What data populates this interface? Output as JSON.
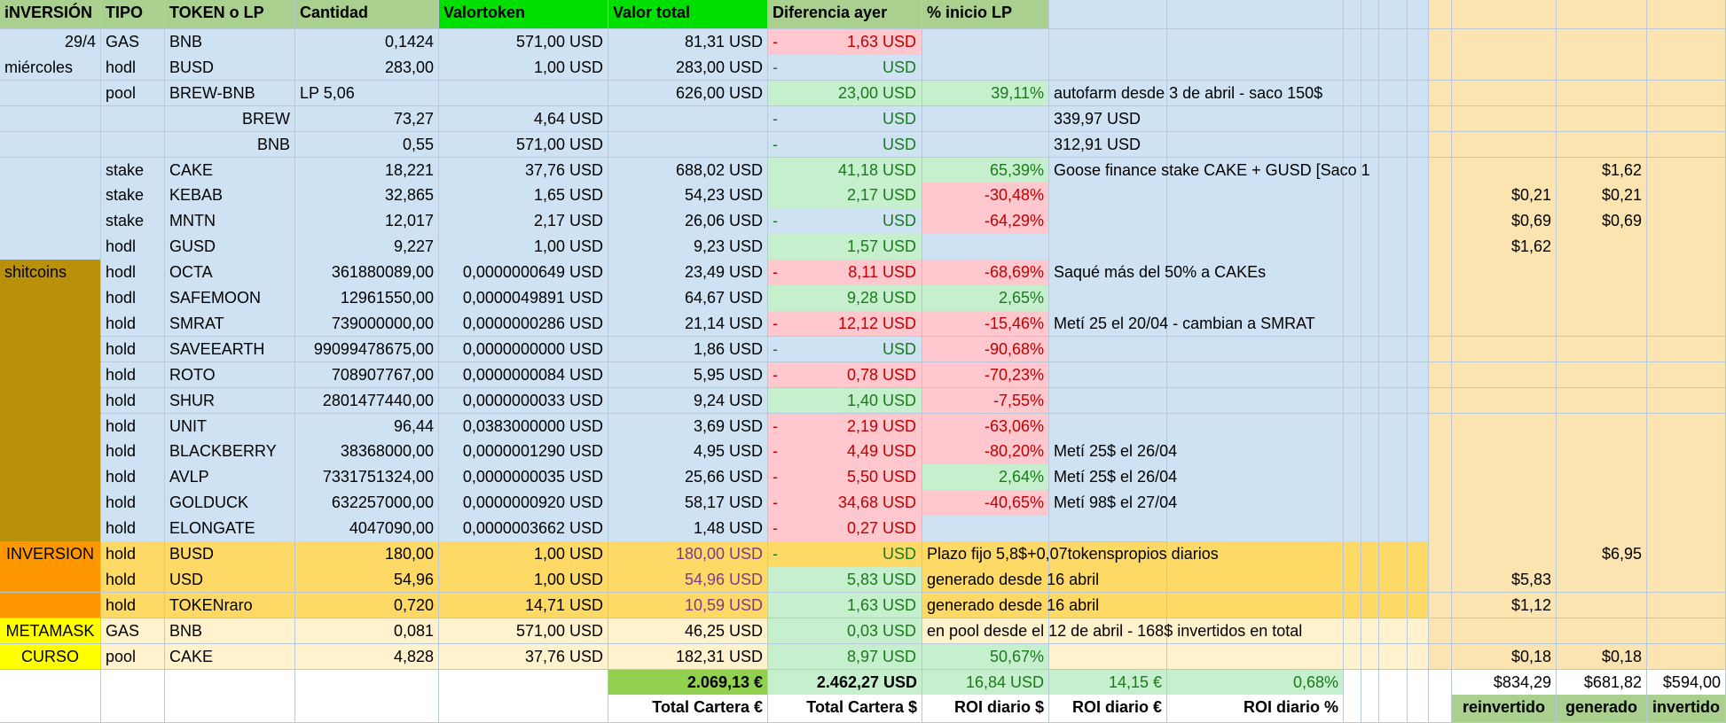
{
  "sheet": {
    "header": {
      "inversion": "iNVERSIÓN",
      "tipo": "TIPO",
      "token": "TOKEN o LP",
      "cantidad": "Cantidad",
      "valortoken": "Valortoken",
      "valortotal": "Valor total",
      "diferencia": "Diferencia ayer",
      "inicio": "% inicio LP"
    },
    "rows": [
      {
        "group": "29/4",
        "tipo": "GAS",
        "token": "BNB",
        "cantidad": "0,1424",
        "valortoken": "571,00 USD",
        "valortotal": "81,31 USD",
        "dash": "-",
        "diff": "1,63 USD",
        "trend": "down",
        "pct": "",
        "note": "",
        "ext_a": "",
        "ext_b": "",
        "ext_c": ""
      },
      {
        "group": "miércoles",
        "tipo": "hodl",
        "token": "BUSD",
        "cantidad": "283,00",
        "valortoken": "1,00 USD",
        "valortotal": "283,00 USD",
        "dash": "-",
        "diff": "USD",
        "trend": "zero",
        "pct": "",
        "note": "",
        "ext_a": "",
        "ext_b": "",
        "ext_c": ""
      },
      {
        "group": "",
        "tipo": "pool",
        "token": "BREW-BNB",
        "cantidad": "LP 5,06",
        "valortoken": "",
        "valortotal": "626,00 USD",
        "dash": "",
        "diff": "23,00 USD",
        "trend": "up",
        "pct": "39,11%",
        "note": "autofarm desde 3 de abril - saco 150$",
        "ext_a": "",
        "ext_b": "",
        "ext_c": ""
      },
      {
        "group": "",
        "tipo": "",
        "token": "BREW",
        "cantidad": "73,27",
        "valortoken": "4,64 USD",
        "valortotal": "",
        "dash": "-",
        "diff": "USD",
        "trend": "zero",
        "pct": "",
        "note": "339,97 USD",
        "ext_a": "",
        "ext_b": "",
        "ext_c": ""
      },
      {
        "group": "",
        "tipo": "",
        "token": "BNB",
        "cantidad": "0,55",
        "valortoken": "571,00 USD",
        "valortotal": "",
        "dash": "-",
        "diff": "USD",
        "trend": "zero",
        "pct": "",
        "note": "312,91 USD",
        "ext_a": "",
        "ext_b": "",
        "ext_c": ""
      },
      {
        "group": "",
        "tipo": "stake",
        "token": "CAKE",
        "cantidad": "18,221",
        "valortoken": "37,76 USD",
        "valortotal": "688,02 USD",
        "dash": "",
        "diff": "41,18 USD",
        "trend": "up",
        "pct": "65,39%",
        "note": "Goose finance stake CAKE + GUSD [Saco 1",
        "ext_a": "",
        "ext_b": "$1,62",
        "ext_c": ""
      },
      {
        "group": "",
        "tipo": "stake",
        "token": "KEBAB",
        "cantidad": "32,865",
        "valortoken": "1,65 USD",
        "valortotal": "54,23 USD",
        "dash": "",
        "diff": "2,17 USD",
        "trend": "up",
        "pct": "-30,48%",
        "note": "",
        "ext_a": "$0,21",
        "ext_b": "$0,21",
        "ext_c": ""
      },
      {
        "group": "",
        "tipo": "stake",
        "token": "MNTN",
        "cantidad": "12,017",
        "valortoken": "2,17 USD",
        "valortotal": "26,06 USD",
        "dash": "-",
        "diff": "USD",
        "trend": "zero",
        "pct": "-64,29%",
        "note": "",
        "ext_a": "$0,69",
        "ext_b": "$0,69",
        "ext_c": ""
      },
      {
        "group": "",
        "tipo": "hodl",
        "token": "GUSD",
        "cantidad": "9,227",
        "valortoken": "1,00 USD",
        "valortotal": "9,23 USD",
        "dash": "",
        "diff": "1,57 USD",
        "trend": "up",
        "pct": "",
        "note": "",
        "ext_a": "$1,62",
        "ext_b": "",
        "ext_c": ""
      },
      {
        "group": "shitcoins",
        "tipo": "hodl",
        "token": "OCTA",
        "cantidad": "361880089,00",
        "valortoken": "0,0000000649 USD",
        "valortotal": "23,49 USD",
        "dash": "-",
        "diff": "8,11 USD",
        "trend": "down",
        "pct": "-68,69%",
        "note": "Saqué más del 50% a CAKEs",
        "ext_a": "",
        "ext_b": "",
        "ext_c": ""
      },
      {
        "group": "",
        "tipo": "hodl",
        "token": "SAFEMOON",
        "cantidad": "12961550,00",
        "valortoken": "0,0000049891 USD",
        "valortotal": "64,67 USD",
        "dash": "",
        "diff": "9,28 USD",
        "trend": "up",
        "pct": "2,65%",
        "note": "",
        "ext_a": "",
        "ext_b": "",
        "ext_c": ""
      },
      {
        "group": "",
        "tipo": "hold",
        "token": "SMRAT",
        "cantidad": "739000000,00",
        "valortoken": "0,0000000286 USD",
        "valortotal": "21,14 USD",
        "dash": "-",
        "diff": "12,12 USD",
        "trend": "down",
        "pct": "-15,46%",
        "note": "Metí 25 el 20/04 - cambian a SMRAT",
        "ext_a": "",
        "ext_b": "",
        "ext_c": ""
      },
      {
        "group": "",
        "tipo": "hold",
        "token": "SAVEEARTH",
        "cantidad": "99099478675,00",
        "valortoken": "0,0000000000 USD",
        "valortotal": "1,86 USD",
        "dash": "-",
        "diff": "USD",
        "trend": "zero",
        "pct": "-90,68%",
        "note": "",
        "ext_a": "",
        "ext_b": "",
        "ext_c": ""
      },
      {
        "group": "",
        "tipo": "hold",
        "token": "ROTO",
        "cantidad": "708907767,00",
        "valortoken": "0,0000000084 USD",
        "valortotal": "5,95 USD",
        "dash": "-",
        "diff": "0,78 USD",
        "trend": "down",
        "pct": "-70,23%",
        "note": "",
        "ext_a": "",
        "ext_b": "",
        "ext_c": ""
      },
      {
        "group": "",
        "tipo": "hold",
        "token": "SHUR",
        "cantidad": "2801477440,00",
        "valortoken": "0,0000000033 USD",
        "valortotal": "9,24 USD",
        "dash": "",
        "diff": "1,40 USD",
        "trend": "up",
        "pct": "-7,55%",
        "note": "",
        "ext_a": "",
        "ext_b": "",
        "ext_c": ""
      },
      {
        "group": "",
        "tipo": "hold",
        "token": "UNIT",
        "cantidad": "96,44",
        "valortoken": "0,0383000000 USD",
        "valortotal": "3,69 USD",
        "dash": "-",
        "diff": "2,19 USD",
        "trend": "down",
        "pct": "-63,06%",
        "note": "",
        "ext_a": "",
        "ext_b": "",
        "ext_c": ""
      },
      {
        "group": "",
        "tipo": "hold",
        "token": "BLACKBERRY",
        "cantidad": "38368000,00",
        "valortoken": "0,0000001290 USD",
        "valortotal": "4,95 USD",
        "dash": "-",
        "diff": "4,49 USD",
        "trend": "down",
        "pct": "-80,20%",
        "note": "Metí 25$ el 26/04",
        "ext_a": "",
        "ext_b": "",
        "ext_c": ""
      },
      {
        "group": "",
        "tipo": "hold",
        "token": "AVLP",
        "cantidad": "7331751324,00",
        "valortoken": "0,0000000035 USD",
        "valortotal": "25,66 USD",
        "dash": "-",
        "diff": "5,50 USD",
        "trend": "down",
        "pct": "2,64%",
        "note": "Metí 25$ el 26/04",
        "ext_a": "",
        "ext_b": "",
        "ext_c": ""
      },
      {
        "group": "",
        "tipo": "hold",
        "token": "GOLDUCK",
        "cantidad": "632257000,00",
        "valortoken": "0,0000000920 USD",
        "valortotal": "58,17 USD",
        "dash": "-",
        "diff": "34,68 USD",
        "trend": "down",
        "pct": "-40,65%",
        "note": "Metí 98$ el 27/04",
        "ext_a": "",
        "ext_b": "",
        "ext_c": ""
      },
      {
        "group": "",
        "tipo": "hold",
        "token": "ELONGATE",
        "cantidad": "4047090,00",
        "valortoken": "0,0000003662 USD",
        "valortotal": "1,48 USD",
        "dash": "-",
        "diff": "0,27 USD",
        "trend": "down",
        "pct": "",
        "note": "",
        "ext_a": "",
        "ext_b": "",
        "ext_c": ""
      },
      {
        "group": "INVERSION",
        "tipo": "hold",
        "token": "BUSD",
        "cantidad": "180,00",
        "valortoken": "1,00 USD",
        "valortotal": "180,00 USD",
        "dash": "-",
        "diff": "USD",
        "trend": "zero",
        "pct": "",
        "note": "Plazo fijo 5,8$+0,07tokenspropios diarios",
        "ext_a": "",
        "ext_b": "$6,95",
        "ext_c": ""
      },
      {
        "group": "",
        "tipo": "hold",
        "token": "USD",
        "cantidad": "54,96",
        "valortoken": "1,00 USD",
        "valortotal": "54,96 USD",
        "dash": "",
        "diff": "5,83 USD",
        "trend": "up",
        "pct": "",
        "note": "generado desde 16 abril",
        "ext_a": "$5,83",
        "ext_b": "",
        "ext_c": ""
      },
      {
        "group": "",
        "tipo": "hold",
        "token": "TOKENraro",
        "cantidad": "0,720",
        "valortoken": "14,71 USD",
        "valortotal": "10,59 USD",
        "dash": "",
        "diff": "1,63 USD",
        "trend": "up",
        "pct": "",
        "note": "generado desde 16 abril",
        "ext_a": "$1,12",
        "ext_b": "",
        "ext_c": ""
      },
      {
        "group": "METAMASK",
        "tipo": "GAS",
        "token": "BNB",
        "cantidad": "0,081",
        "valortoken": "571,00 USD",
        "valortotal": "46,25 USD",
        "dash": "",
        "diff": "0,03 USD",
        "trend": "up",
        "pct": "",
        "note": "en pool desde el 12 de abril - 168$ invertidos en total",
        "ext_a": "",
        "ext_b": "",
        "ext_c": ""
      },
      {
        "group": "CURSO",
        "tipo": "pool",
        "token": "CAKE",
        "cantidad": "4,828",
        "valortoken": "37,76 USD",
        "valortotal": "182,31 USD",
        "dash": "",
        "diff": "8,97 USD",
        "trend": "up",
        "pct": "50,67%",
        "note": "",
        "ext_a": "$0,18",
        "ext_b": "$0,18",
        "ext_c": ""
      }
    ],
    "totals": {
      "total_eur": "2.069,13 €",
      "total_usd": "2.462,27 USD",
      "roi_usd": "16,84 USD",
      "roi_eur": "14,15 €",
      "roi_pct": "0,68%",
      "reinvertido": "$834,29",
      "generado": "$681,82",
      "invertido": "$594,00"
    },
    "footer": {
      "total_cartera_eur": "Total Cartera €",
      "total_cartera_usd": "Total Cartera $",
      "roi_diario_usd": "ROI diario $",
      "roi_diario_eur": "ROI diario €",
      "roi_diario_pct": "ROI diario %",
      "reinvertido": "reinvertido",
      "generado": "generado",
      "invertido": "invertido"
    },
    "colors": {
      "blue_row": "#cfe2f3",
      "header_green": "#a9d08e",
      "bright_green": "#00e000",
      "pos_green": "#c6efce",
      "neg_red": "#ffc7ce",
      "shitcoins": "#b8900a",
      "inversion": "#ff9800",
      "inversion_row": "#ffd966",
      "metamask": "#ffff00",
      "metamask_row": "#fff2cc",
      "total_green": "#92d050",
      "ext_col": "#fce4b0"
    }
  }
}
